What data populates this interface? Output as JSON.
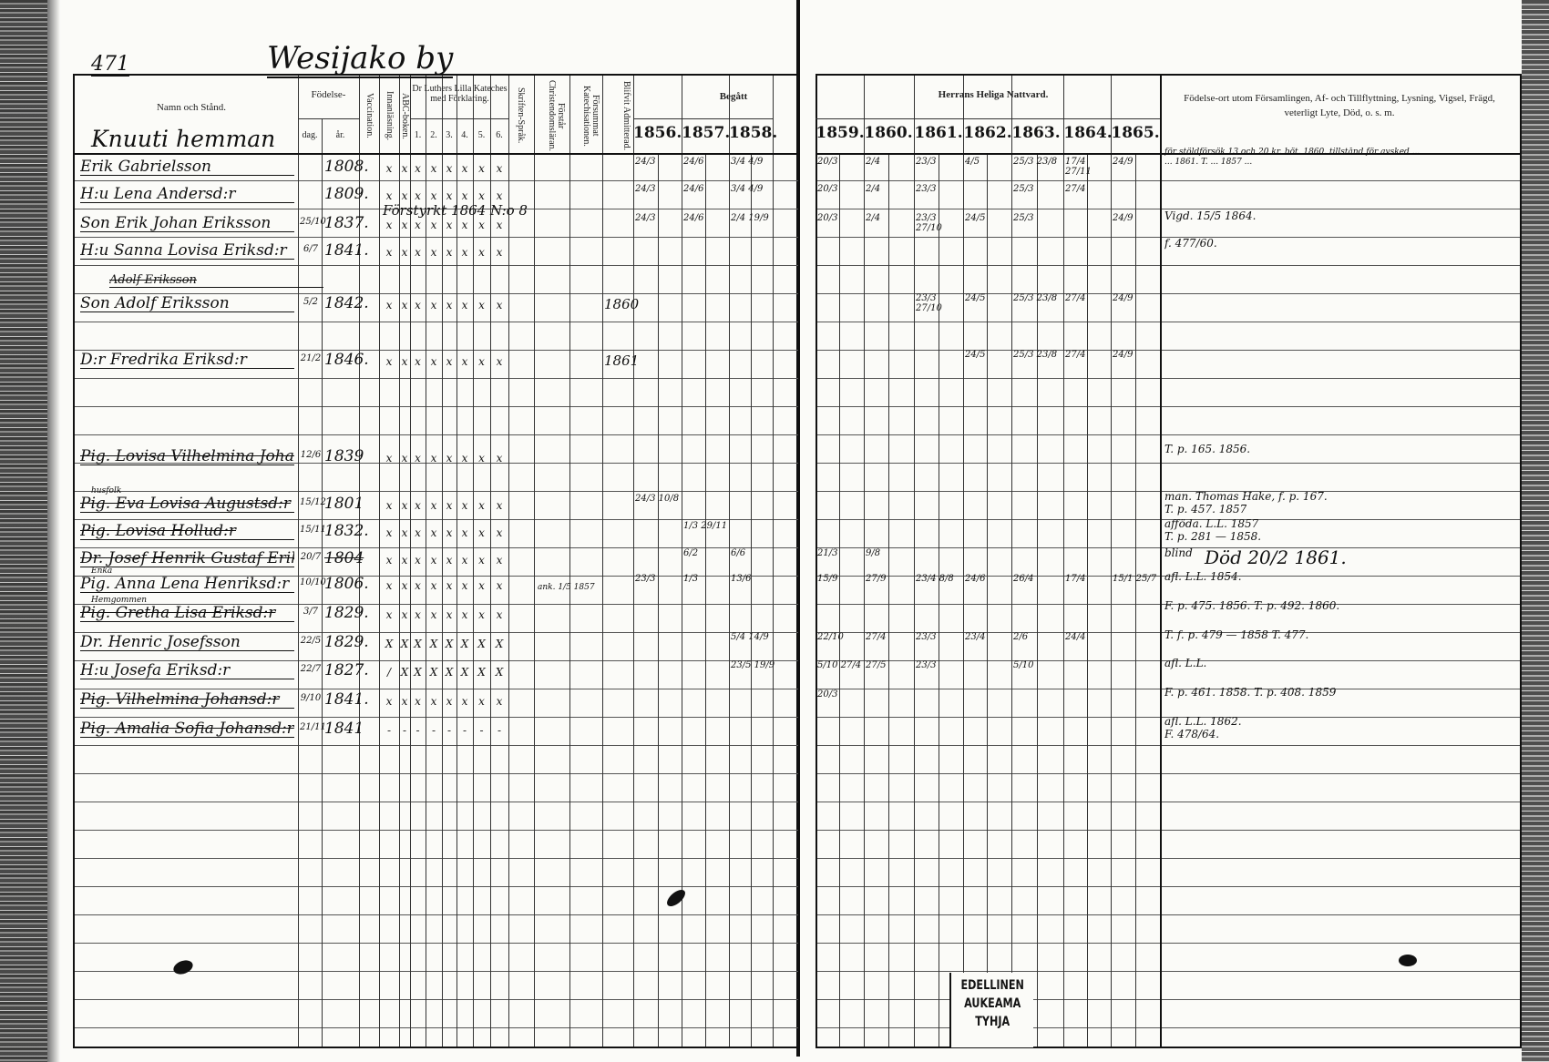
{
  "page_number": "471",
  "village": "Wesijako by",
  "household": "Knuuti hemman",
  "headers": {
    "name": "Namn och Stånd.",
    "birth": "Födelse-",
    "birth_day": "dag.",
    "birth_year": "år.",
    "vaccination": "Vaccination.",
    "reading": "Innanläsning.",
    "abc": "ABC-boken.",
    "catechism": "Dr Luthers Lilla Kateches med Förklaring.",
    "catechism_parts": [
      "1.",
      "2.",
      "3.",
      "4.",
      "5.",
      "6."
    ],
    "scripture": "Skriften-Språk.",
    "understanding": "Förstår Christendomsläran.",
    "missed": "Försummat Katechisationen.",
    "admitted": "Blifvit Admitterad.",
    "communion_taken": "Begått",
    "communion": "Herrans Heliga Nattvard.",
    "years_left": [
      "1856.",
      "1857.",
      "1858."
    ],
    "years_right": [
      "1859.",
      "1860.",
      "1861.",
      "1862.",
      "1863.",
      "1864.",
      "1865."
    ],
    "remarks": "Födelse-ort utom Församlingen, Af- och Tillflyttning, Lysning, Vigsel, Frägd, veterligt Lyte, Död, o. s. m."
  },
  "entries": [
    {
      "name": "Erik Gabrielsson",
      "day": "",
      "year": "1808.",
      "marks": [
        "x",
        "x",
        "x",
        "x",
        "x",
        "x",
        "x",
        "x"
      ],
      "admitted": "",
      "communion": {
        "1856": "24/3",
        "1857": "24/6",
        "1858": "3/4 4/9",
        "1859": "20/3",
        "1860": "2/4",
        "1861": "23/3",
        "1862": "4/5",
        "1863": "25/3 23/8",
        "1864": "17/4 27/11",
        "1865": "24/9"
      },
      "remarks": [
        "för stöldförsök 13 och 20 kr. böt. 1860. tillstånd för avsked ...",
        "... 1861. T. ... 1857 ..."
      ]
    },
    {
      "name": "H:u Lena Andersd:r",
      "day": "",
      "year": "1809.",
      "marks": [
        "x",
        "x",
        "x",
        "x",
        "x",
        "x",
        "x",
        "x"
      ],
      "admitted": "",
      "overlay": "Förstyrkt 1864 N:o 8",
      "communion": {
        "1856": "24/3",
        "1857": "24/6",
        "1858": "3/4 4/9",
        "1859": "20/3",
        "1860": "2/4",
        "1861": "23/3",
        "1863": "25/3",
        "1864": "27/4"
      },
      "remarks": []
    },
    {
      "name": "Son Erik Johan Eriksson",
      "day": "25/10",
      "year": "1837.",
      "marks": [
        "x",
        "x",
        "x",
        "x",
        "x",
        "x",
        "x",
        "x"
      ],
      "admitted": "",
      "communion": {
        "1856": "24/3",
        "1857": "24/6",
        "1858": "2/4 19/9",
        "1859": "20/3",
        "1860": "2/4",
        "1861": "23/3 27/10",
        "1862": "24/5",
        "1863": "25/3",
        "1865": "24/9"
      },
      "remarks": [
        "Vigd. 15/5 1864."
      ]
    },
    {
      "name": "H:u Sanna Lovisa Eriksd:r",
      "day": "6/7",
      "year": "1841.",
      "marks": [
        "x",
        "x",
        "x",
        "x",
        "x",
        "x",
        "x",
        "x"
      ],
      "admitted": "",
      "communion": {},
      "remarks": [
        "f. 477/60."
      ]
    },
    {
      "name": "Adolf Eriksson",
      "struck": true,
      "day": "",
      "year": "",
      "marks": [],
      "admitted": "",
      "communion": {},
      "remarks": []
    },
    {
      "name": "Son Adolf Eriksson",
      "day": "5/2",
      "year": "1842.",
      "marks": [
        "x",
        "x",
        "x",
        "x",
        "x",
        "x",
        "x",
        "x"
      ],
      "admitted": "1860",
      "communion": {
        "1861": "23/3 27/10",
        "1862": "24/5",
        "1863": "25/3 23/8",
        "1864": "27/4",
        "1865": "24/9"
      },
      "remarks": []
    },
    {
      "name": "D:r Fredrika Eriksd:r",
      "day": "21/2",
      "year": "1846.",
      "marks": [
        "x",
        "x",
        "x",
        "x",
        "x",
        "x",
        "x",
        "x"
      ],
      "admitted": "1861",
      "communion": {
        "1862": "24/5",
        "1863": "25/3 23/8",
        "1864": "27/4",
        "1865": "24/9"
      },
      "remarks": []
    },
    {
      "name": "Pig. Lovisa Vilhelmina Johansd:r",
      "struck": true,
      "day": "12/6",
      "year": "1839",
      "marks": [
        "x",
        "x",
        "x",
        "x",
        "x",
        "x",
        "x",
        "x"
      ],
      "admitted": "",
      "communion": {},
      "remarks": [
        "T. p. 165. 1856."
      ]
    },
    {
      "name": "Pig. Eva Lovisa Augustsd:r",
      "struck": true,
      "note": "husfolk",
      "day": "15/12",
      "year": "1801",
      "marks": [
        "x",
        "x",
        "x",
        "x",
        "x",
        "x",
        "x",
        "x"
      ],
      "admitted": "",
      "communion": {
        "1856": "24/3 10/8"
      },
      "remarks": [
        "man. Thomas Hake, f. p. 167.",
        "T. p. 457. 1857"
      ]
    },
    {
      "name": "Pig. Lovisa Hollud:r",
      "struck": true,
      "day": "15/11",
      "year": "1832.",
      "marks": [
        "x",
        "x",
        "x",
        "x",
        "x",
        "x",
        "x",
        "x"
      ],
      "admitted": "",
      "communion": {
        "1857": "1/3 29/11"
      },
      "remarks": [
        "afföda. L.L. 1857",
        "T. p. 281 — 1858."
      ]
    },
    {
      "name": "Dr. Josef Henrik Gustaf Eriksson",
      "struck": true,
      "day": "20/7",
      "year": "1804",
      "marks": [
        "x",
        "x",
        "x",
        "x",
        "x",
        "x",
        "x",
        "x"
      ],
      "admitted": "",
      "communion": {
        "1857": "6/2",
        "1858": "6/6",
        "1859": "21/3",
        "1860": "9/8"
      },
      "remarks": [
        "blind",
        "Död 20/2 1861."
      ]
    },
    {
      "name": "Pig. Anna Lena Henriksd:r",
      "note": "Enka",
      "day": "10/10",
      "year": "1806.",
      "marks": [
        "x",
        "x",
        "x",
        "x",
        "x",
        "x",
        "x",
        "x"
      ],
      "admitted": "",
      "missed": "ank. 1/5 1857",
      "communion": {
        "1856": "23/3",
        "1857": "1/3",
        "1858": "13/6",
        "1859": "15/9",
        "1860": "27/9",
        "1861": "23/4 8/8",
        "1862": "24/6",
        "1863": "26/4",
        "1864": "17/4",
        "1865": "15/1 25/7"
      },
      "remarks": [
        "afl. L.L. 1854."
      ]
    },
    {
      "name": "Pig. Gretha Lisa Eriksd:r",
      "struck": true,
      "note": "Hemgommen",
      "day": "3/7",
      "year": "1829.",
      "marks": [
        "x",
        "x",
        "x",
        "x",
        "x",
        "x",
        "x",
        "x"
      ],
      "admitted": "",
      "communion": {},
      "remarks": [
        "F. p. 475. 1856. T. p. 492. 1860."
      ]
    },
    {
      "name": "Dr. Henric Josefsson",
      "day": "22/5",
      "year": "1829.",
      "marks": [
        "X",
        "X",
        "X",
        "X",
        "X",
        "X",
        "X",
        "X"
      ],
      "admitted": "",
      "communion": {
        "1858": "5/4 14/9",
        "1859": "22/10",
        "1860": "27/4",
        "1861": "23/3",
        "1862": "23/4",
        "1863": "2/6",
        "1864": "24/4"
      },
      "remarks": [
        "T. f. p. 479 — 1858  T. 477."
      ]
    },
    {
      "name": "H:u Josefa Eriksd:r",
      "day": "22/7",
      "year": "1827.",
      "marks": [
        "/",
        "X",
        "X",
        "X",
        "X",
        "X",
        "X",
        "X"
      ],
      "admitted": "",
      "communion": {
        "1858": "23/5 19/9",
        "1859": "5/10 27/4",
        "1860": "27/5",
        "1861": "23/3",
        "1863": "5/10"
      },
      "remarks": [
        "afl. L.L."
      ]
    },
    {
      "name": "Pig. Vilhelmina Johansd:r",
      "struck": true,
      "day": "9/10",
      "year": "1841.",
      "marks": [
        "x",
        "x",
        "x",
        "x",
        "x",
        "x",
        "x",
        "x"
      ],
      "admitted": "",
      "communion": {
        "1859": "20/3"
      },
      "remarks": [
        "F. p. 461. 1858. T. p. 408. 1859"
      ]
    },
    {
      "name": "Pig. Amalia Sofia Johansd:r",
      "struck": true,
      "day": "21/11",
      "year": "1841",
      "marks": [
        "-",
        "-",
        "-",
        "-",
        "-",
        "-",
        "-",
        "-"
      ],
      "admitted": "",
      "communion": {},
      "remarks": [
        "afl. L.L. 1862.",
        "F. 478/64."
      ]
    }
  ],
  "stamp": [
    "EDELLINEN",
    "AUKEAMA",
    "TYHJA"
  ]
}
